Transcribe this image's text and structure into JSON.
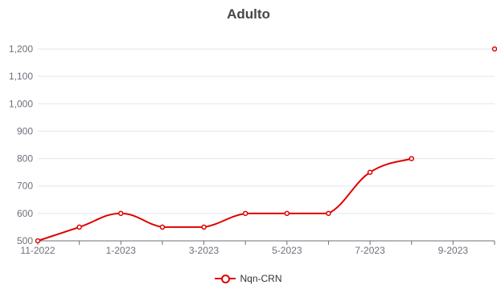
{
  "chart_data": {
    "type": "line",
    "title": "Adulto",
    "x": [
      "11-2022",
      "12-2022",
      "1-2023",
      "2-2023",
      "3-2023",
      "4-2023",
      "5-2023",
      "6-2023",
      "7-2023",
      "8-2023",
      "9-2023",
      "10-2023"
    ],
    "x_tick_labels": [
      "11-2022",
      "1-2023",
      "3-2023",
      "5-2023",
      "7-2023",
      "9-2023"
    ],
    "y_tick_labels": [
      "500",
      "600",
      "700",
      "800",
      "900",
      "1,000",
      "1,100",
      "1,200"
    ],
    "ylim": [
      500,
      1200
    ],
    "series": [
      {
        "name": "Nqn-CRN",
        "color": "#e00000",
        "values": [
          500,
          550,
          600,
          550,
          550,
          600,
          600,
          600,
          750,
          800,
          null,
          1200
        ]
      }
    ],
    "grid": true,
    "legend": "bottom-center"
  }
}
